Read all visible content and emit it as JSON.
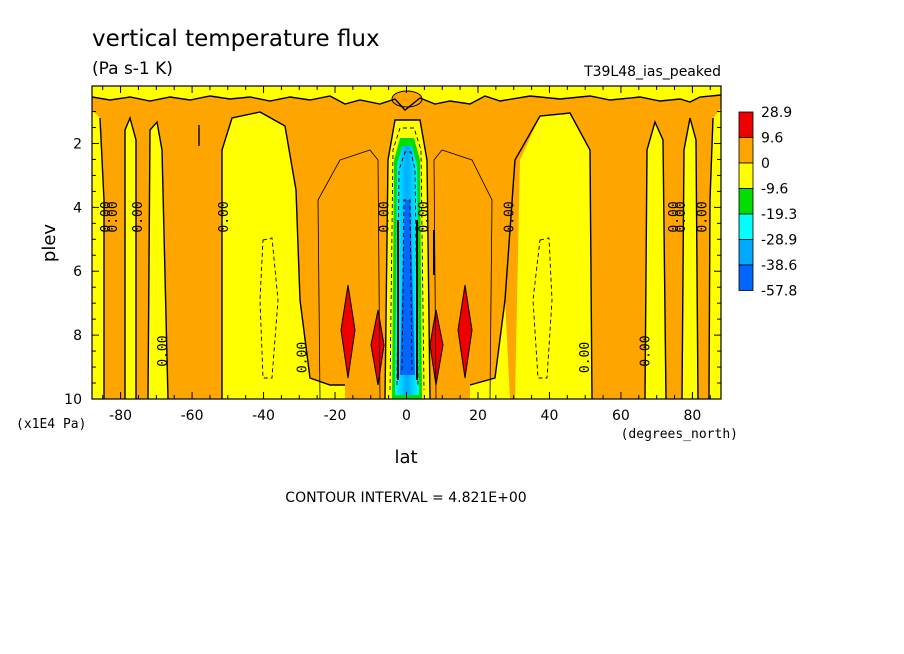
{
  "chart_data": {
    "type": "heatmap",
    "title": "vertical temperature flux",
    "units": "(Pa s-1 K)",
    "experiment": "T39L48_ias_peaked",
    "xlabel": "lat",
    "xunits": "(degrees_north)",
    "ylabel": "plev",
    "yunits": "(x1E4 Pa)",
    "xlim": [
      -88,
      88
    ],
    "ylim": [
      10,
      0.2
    ],
    "xticks": [
      -80,
      -60,
      -40,
      -20,
      0,
      20,
      40,
      60,
      80
    ],
    "yticks": [
      2,
      4,
      6,
      8,
      10
    ],
    "contour_interval": "CONTOUR INTERVAL = 4.821E+00",
    "legend": {
      "levels": [
        "28.9",
        "9.6",
        "0",
        "-9.6",
        "-19.3",
        "-28.9",
        "-38.6",
        "-57.8"
      ],
      "colors": [
        "#ee0000",
        "#ffa500",
        "#ffff00",
        "#00dd00",
        "#00ffff",
        "#00aaff",
        "#0066ff"
      ]
    },
    "contour_labels": [
      {
        "text": "0.00",
        "lat": -83,
        "plev": 4.3
      },
      {
        "text": "0.00",
        "lat": -81,
        "plev": 4.3
      },
      {
        "text": "0.00",
        "lat": -74,
        "plev": 4.3
      },
      {
        "text": "0.00",
        "lat": -50,
        "plev": 4.3
      },
      {
        "text": "0.00",
        "lat": -67,
        "plev": 8.5
      },
      {
        "text": "0.00",
        "lat": -28,
        "plev": 8.7
      },
      {
        "text": "0.00",
        "lat": -5,
        "plev": 4.3
      },
      {
        "text": "0.00",
        "lat": 6,
        "plev": 4.3
      },
      {
        "text": "0.00",
        "lat": 30,
        "plev": 4.3
      },
      {
        "text": "0.00",
        "lat": 51,
        "plev": 8.7
      },
      {
        "text": "0.00",
        "lat": 68,
        "plev": 8.5
      },
      {
        "text": "0.00",
        "lat": 76,
        "plev": 4.3
      },
      {
        "text": "0.00",
        "lat": 78,
        "plev": 4.3
      },
      {
        "text": "0.00",
        "lat": 84,
        "plev": 4.3
      }
    ]
  }
}
